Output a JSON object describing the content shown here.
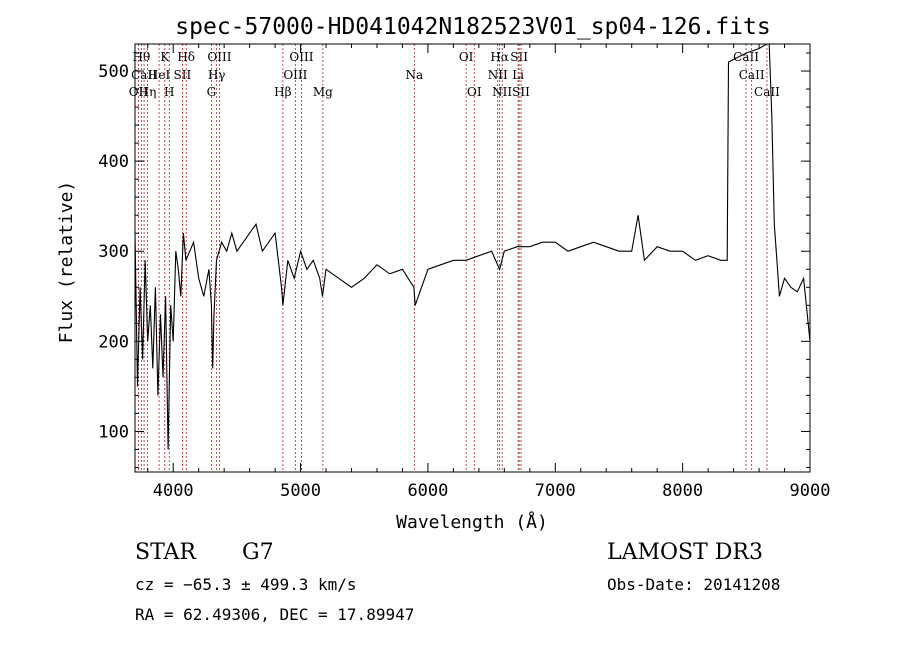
{
  "chart_data": {
    "type": "line",
    "title": "spec-57000-HD041042N182523V01_sp04-126.fits",
    "xlabel": "Wavelength (Å)",
    "ylabel": "Flux (relative)",
    "xlim": [
      3700,
      9000
    ],
    "ylim": [
      55,
      530
    ],
    "xticks": [
      4000,
      5000,
      6000,
      7000,
      8000,
      9000
    ],
    "yticks": [
      100,
      200,
      300,
      400,
      500
    ],
    "series": [
      {
        "x": [
          3700,
          3720,
          3740,
          3760,
          3780,
          3800,
          3820,
          3840,
          3860,
          3880,
          3900,
          3920,
          3940,
          3960,
          3980,
          4000,
          4020,
          4040,
          4060,
          4080,
          4100,
          4130,
          4160,
          4200,
          4240,
          4280,
          4300,
          4310,
          4320,
          4340,
          4380,
          4420,
          4460,
          4500,
          4550,
          4600,
          4650,
          4700,
          4750,
          4800,
          4850,
          4861,
          4900,
          4950,
          5000,
          5050,
          5100,
          5150,
          5172,
          5200,
          5300,
          5400,
          5500,
          5600,
          5700,
          5800,
          5890,
          5900,
          6000,
          6100,
          6200,
          6300,
          6400,
          6500,
          6563,
          6600,
          6700,
          6800,
          6900,
          7000,
          7100,
          7200,
          7300,
          7400,
          7500,
          7600,
          7650,
          7700,
          7800,
          7900,
          8000,
          8100,
          8200,
          8300,
          8350,
          8360,
          8500,
          8600,
          8660,
          8680,
          8700,
          8720,
          8740,
          8760,
          8800,
          8850,
          8900,
          8950,
          9000
        ],
        "values": [
          320,
          150,
          260,
          180,
          290,
          200,
          240,
          170,
          260,
          140,
          230,
          160,
          250,
          80,
          240,
          200,
          300,
          280,
          250,
          320,
          290,
          300,
          310,
          270,
          250,
          280,
          240,
          170,
          230,
          290,
          310,
          300,
          320,
          300,
          310,
          320,
          330,
          300,
          310,
          320,
          260,
          240,
          290,
          270,
          300,
          280,
          290,
          270,
          250,
          280,
          270,
          260,
          270,
          285,
          275,
          280,
          260,
          240,
          280,
          285,
          290,
          290,
          295,
          300,
          280,
          300,
          305,
          305,
          310,
          310,
          300,
          305,
          310,
          305,
          300,
          300,
          340,
          290,
          305,
          300,
          300,
          290,
          295,
          290,
          290,
          510,
          520,
          525,
          530,
          530,
          450,
          330,
          290,
          250,
          270,
          260,
          255,
          270,
          200
        ]
      }
    ],
    "lines": [
      {
        "x": 3727,
        "label": "OII",
        "row": 2
      },
      {
        "x": 3750,
        "label": "Hθ",
        "row": 0
      },
      {
        "x": 3771,
        "label": "CaII",
        "row": 1
      },
      {
        "x": 3798,
        "label": "Hη",
        "row": 2
      },
      {
        "x": 3889,
        "label": "HeI",
        "row": 1
      },
      {
        "x": 3934,
        "label": "K",
        "row": 0
      },
      {
        "x": 3969,
        "label": "H",
        "row": 2
      },
      {
        "x": 4072,
        "label": "SII",
        "row": 1
      },
      {
        "x": 4102,
        "label": "Hδ",
        "row": 0
      },
      {
        "x": 4300,
        "label": "G",
        "row": 2
      },
      {
        "x": 4341,
        "label": "Hγ",
        "row": 1
      },
      {
        "x": 4363,
        "label": "OIII",
        "row": 0
      },
      {
        "x": 4861,
        "label": "Hβ",
        "row": 2
      },
      {
        "x": 4959,
        "label": "OIII",
        "row": 1
      },
      {
        "x": 5007,
        "label": "OIII",
        "row": 0
      },
      {
        "x": 5175,
        "label": "Mg",
        "row": 2
      },
      {
        "x": 5893,
        "label": "Na",
        "row": 1
      },
      {
        "x": 6300,
        "label": "OI",
        "row": 0
      },
      {
        "x": 6364,
        "label": "OI",
        "row": 2
      },
      {
        "x": 6548,
        "label": "NII",
        "row": 1
      },
      {
        "x": 6563,
        "label": "Hα",
        "row": 0
      },
      {
        "x": 6583,
        "label": "NII",
        "row": 2
      },
      {
        "x": 6708,
        "label": "Li",
        "row": 1
      },
      {
        "x": 6716,
        "label": "SII",
        "row": 0
      },
      {
        "x": 6731,
        "label": "SII",
        "row": 2
      },
      {
        "x": 8498,
        "label": "CaII",
        "row": 0
      },
      {
        "x": 8542,
        "label": "CaII",
        "row": 1
      },
      {
        "x": 8662,
        "label": "CaII",
        "row": 2
      }
    ]
  },
  "info": {
    "object_class": "STAR",
    "subclass": "G7",
    "survey": "LAMOST DR3",
    "cz": "cz = −65.3 ± 499.3 km/s",
    "obs_date": "Obs-Date: 20141208",
    "coords": "RA =  62.49306, DEC =  17.89947"
  }
}
